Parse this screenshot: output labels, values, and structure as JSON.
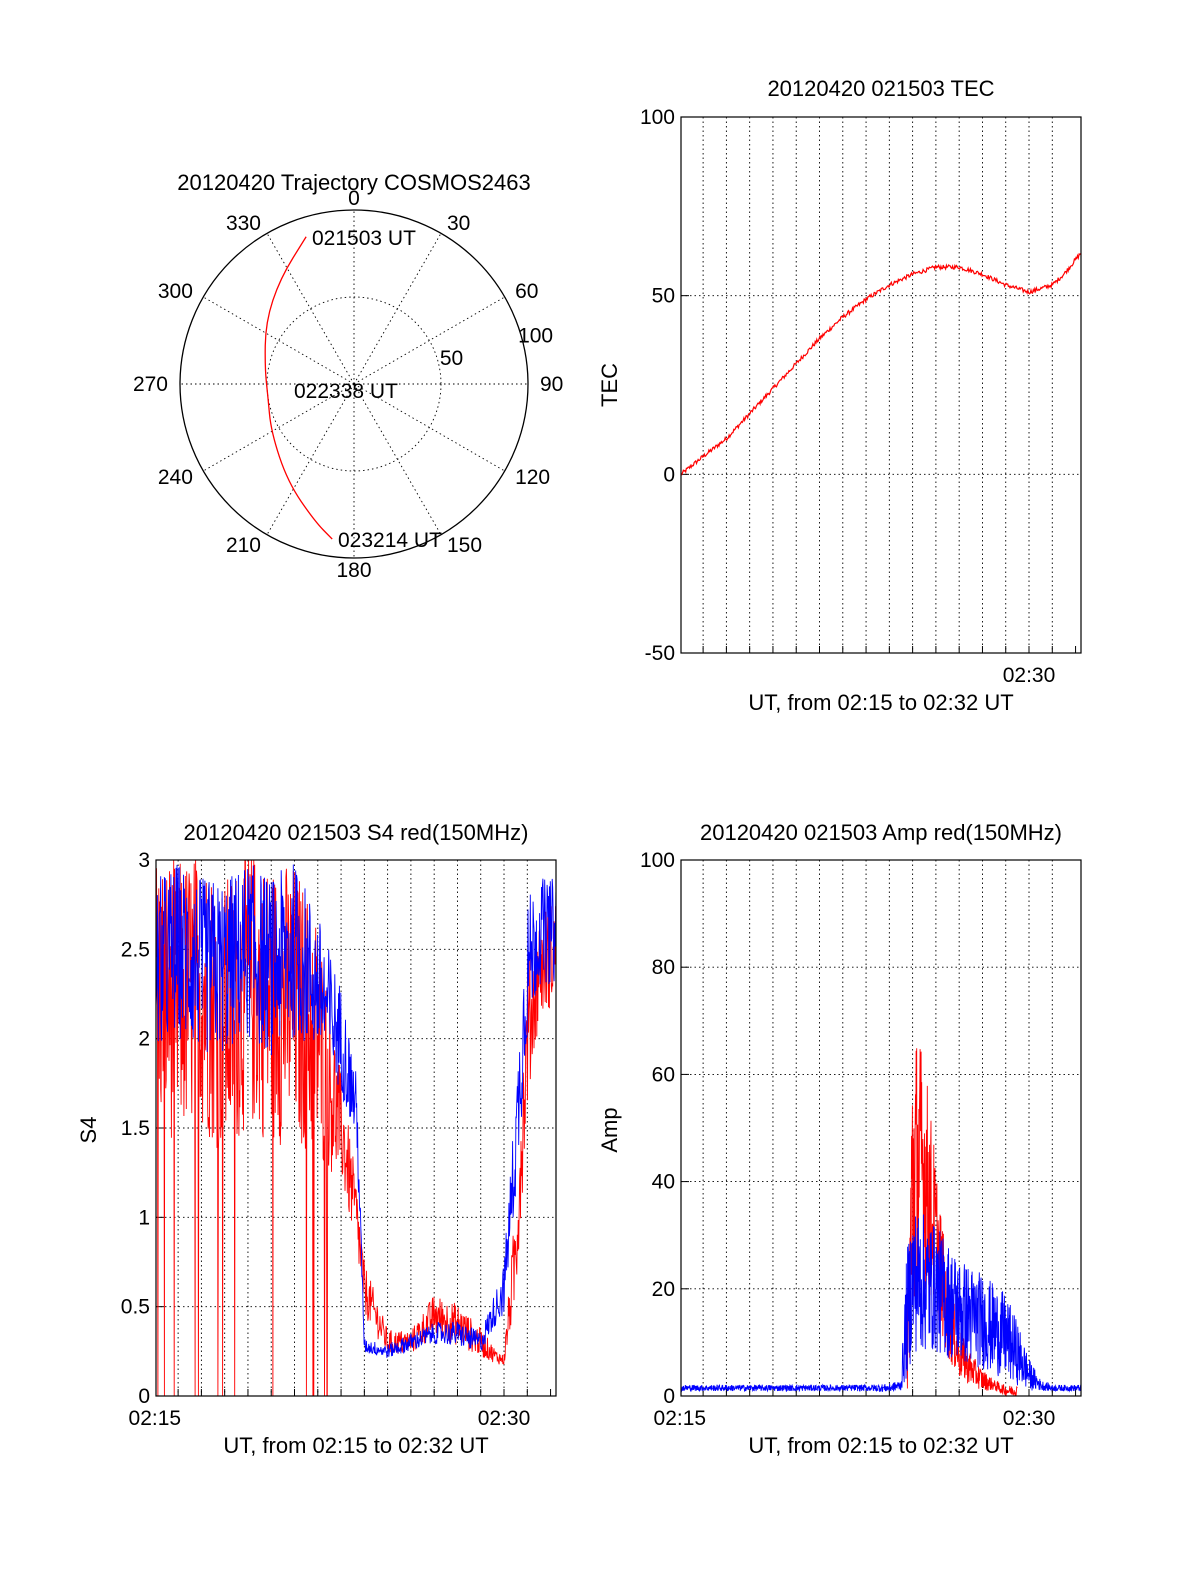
{
  "colors": {
    "red": "#ff0000",
    "blue": "#0000ff",
    "axis": "#000000"
  },
  "chart_data": [
    {
      "type": "polar",
      "title": "20120420 Trajectory COSMOS2463",
      "angle_labels": [
        "0",
        "30",
        "60",
        "90",
        "120",
        "150",
        "180",
        "210",
        "240",
        "270",
        "300",
        "330"
      ],
      "angle_values": [
        0,
        30,
        60,
        90,
        120,
        150,
        180,
        210,
        240,
        270,
        300,
        330
      ],
      "radial_labels": [
        "50",
        "100"
      ],
      "radial_values": [
        50,
        100
      ],
      "r_max": 100,
      "grid": true,
      "annotations": [
        "021503 UT",
        "022338 UT",
        "023214 UT"
      ],
      "trajectory": {
        "color": "red",
        "points": [
          {
            "az": 342,
            "r": 89
          },
          {
            "az": 325,
            "r": 74
          },
          {
            "az": 305,
            "r": 62
          },
          {
            "az": 280,
            "r": 52
          },
          {
            "az": 262,
            "r": 50
          },
          {
            "az": 240,
            "r": 55
          },
          {
            "az": 214,
            "r": 68
          },
          {
            "az": 196,
            "r": 82
          },
          {
            "az": 188,
            "r": 90
          }
        ]
      }
    },
    {
      "type": "line",
      "title": "20120420 021503 TEC",
      "ylabel": "TEC",
      "xlabel": "UT, from 02:15 to 02:32 UT",
      "xlim": [
        "02:15:03",
        "02:32:14"
      ],
      "ylim": [
        -50,
        100
      ],
      "yticks": [
        -50,
        0,
        50,
        100
      ],
      "xtick_labels": [
        {
          "t": "02:30",
          "label": "02:30"
        }
      ],
      "grid": true,
      "series": [
        {
          "color": "red",
          "x": [
            "02:15:03",
            "02:16:00",
            "02:17:00",
            "02:18:00",
            "02:19:00",
            "02:20:00",
            "02:21:00",
            "02:22:00",
            "02:23:00",
            "02:24:00",
            "02:25:00",
            "02:26:00",
            "02:27:00",
            "02:28:00",
            "02:29:00",
            "02:30:00",
            "02:31:00",
            "02:31:30",
            "02:32:14"
          ],
          "y": [
            0,
            5,
            10,
            17,
            24,
            31,
            38,
            44,
            49,
            53,
            56,
            58,
            58,
            56,
            53,
            51,
            53,
            56,
            62
          ]
        }
      ]
    },
    {
      "type": "line",
      "title": "20120420 021503 S4 red(150MHz)",
      "ylabel": "S4",
      "xlabel": "UT, from 02:15 to 02:32 UT",
      "xlim": [
        "02:15:03",
        "02:32:14"
      ],
      "ylim": [
        0,
        3
      ],
      "yticks": [
        0,
        0.5,
        1,
        1.5,
        2,
        2.5,
        3
      ],
      "ytick_labels": [
        "0",
        "0.5",
        "1",
        "1.5",
        "2",
        "2.5",
        "3"
      ],
      "xtick_labels": [
        {
          "t": "02:15",
          "label": "02:15"
        },
        {
          "t": "02:30",
          "label": "02:30"
        }
      ],
      "grid": true,
      "series": [
        {
          "color": "red",
          "x": [
            "02:15:03",
            "02:16:00",
            "02:17:00",
            "02:18:00",
            "02:19:00",
            "02:20:00",
            "02:21:00",
            "02:22:00",
            "02:23:00",
            "02:23:40",
            "02:24:00",
            "02:24:40",
            "02:25:00",
            "02:26:00",
            "02:27:00",
            "02:28:00",
            "02:29:00",
            "02:29:40",
            "02:30:00",
            "02:30:30",
            "02:31:00",
            "02:31:30",
            "02:32:14"
          ],
          "y": [
            2.3,
            2.2,
            2.3,
            2.1,
            2.3,
            2.2,
            2.2,
            2.0,
            1.5,
            1.0,
            0.6,
            0.4,
            0.3,
            0.3,
            0.45,
            0.4,
            0.3,
            0.22,
            0.2,
            0.8,
            2.0,
            2.4,
            2.5
          ],
          "spread": [
            0.8,
            0.8,
            0.8,
            0.8,
            0.8,
            0.8,
            0.8,
            0.7,
            0.3,
            0.2,
            0.15,
            0.1,
            0.07,
            0.07,
            0.12,
            0.12,
            0.08,
            0.04,
            0.03,
            0.3,
            0.4,
            0.3,
            0.3
          ]
        },
        {
          "color": "blue",
          "x": [
            "02:15:03",
            "02:16:00",
            "02:17:00",
            "02:18:00",
            "02:19:00",
            "02:20:00",
            "02:21:00",
            "02:22:00",
            "02:23:00",
            "02:23:40",
            "02:24:00",
            "02:25:00",
            "02:26:00",
            "02:27:00",
            "02:28:00",
            "02:29:00",
            "02:29:40",
            "02:30:00",
            "02:30:30",
            "02:31:00",
            "02:31:30",
            "02:32:14"
          ],
          "y": [
            2.4,
            2.5,
            2.4,
            2.4,
            2.5,
            2.4,
            2.5,
            2.3,
            2.0,
            1.6,
            0.28,
            0.25,
            0.3,
            0.35,
            0.35,
            0.3,
            0.5,
            0.6,
            1.4,
            2.4,
            2.6,
            2.6
          ],
          "spread": [
            0.5,
            0.5,
            0.5,
            0.5,
            0.5,
            0.5,
            0.5,
            0.4,
            0.3,
            0.2,
            0.04,
            0.04,
            0.05,
            0.06,
            0.07,
            0.06,
            0.1,
            0.15,
            0.3,
            0.4,
            0.3,
            0.3
          ]
        }
      ]
    },
    {
      "type": "line",
      "title": "20120420 021503 Amp red(150MHz)",
      "ylabel": "Amp",
      "xlabel": "UT, from 02:15 to 02:32 UT",
      "xlim": [
        "02:15:03",
        "02:32:14"
      ],
      "ylim": [
        0,
        100
      ],
      "yticks": [
        0,
        20,
        40,
        60,
        80,
        100
      ],
      "xtick_labels": [
        {
          "t": "02:15",
          "label": "02:15"
        },
        {
          "t": "02:30",
          "label": "02:30"
        }
      ],
      "grid": true,
      "series": [
        {
          "color": "red",
          "x": [
            "02:24:45",
            "02:25:00",
            "02:25:20",
            "02:25:40",
            "02:26:00",
            "02:26:30",
            "02:27:00",
            "02:27:30",
            "02:28:00",
            "02:28:30",
            "02:29:00",
            "02:29:30"
          ],
          "y": [
            5,
            40,
            45,
            38,
            30,
            15,
            8,
            5,
            3,
            2,
            1,
            1
          ],
          "spread": [
            5,
            30,
            22,
            20,
            14,
            8,
            5,
            3,
            2,
            1,
            1,
            1
          ]
        },
        {
          "color": "blue",
          "x": [
            "02:15:03",
            "02:17:00",
            "02:19:00",
            "02:21:00",
            "02:23:00",
            "02:24:00",
            "02:24:30",
            "02:24:45",
            "02:25:00",
            "02:26:00",
            "02:27:00",
            "02:28:00",
            "02:29:00",
            "02:29:30",
            "02:30:00",
            "02:30:30",
            "02:31:00",
            "02:32:14"
          ],
          "y": [
            1.5,
            1.5,
            1.5,
            1.5,
            1.5,
            1.5,
            2,
            15,
            22,
            20,
            16,
            14,
            11,
            8,
            4,
            2,
            1.5,
            1.5
          ],
          "spread": [
            0.6,
            0.6,
            0.6,
            0.6,
            0.6,
            0.8,
            1,
            12,
            14,
            12,
            10,
            9,
            8,
            6,
            3,
            1,
            0.6,
            0.6
          ]
        }
      ]
    }
  ]
}
